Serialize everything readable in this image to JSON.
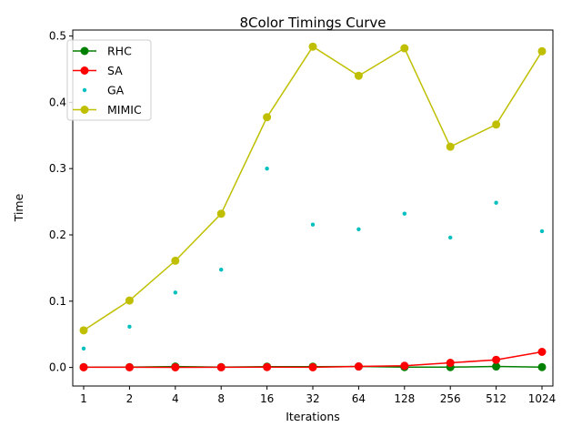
{
  "chart_data": {
    "type": "line",
    "title": "8Color Timings Curve",
    "xlabel": "Iterations",
    "ylabel": "Time",
    "categories": [
      "1",
      "2",
      "4",
      "8",
      "16",
      "32",
      "64",
      "128",
      "256",
      "512",
      "1024"
    ],
    "ylim": [
      -0.028,
      0.509
    ],
    "yticks": [
      "0.0",
      "0.1",
      "0.2",
      "0.3",
      "0.4",
      "0.5"
    ],
    "ytick_values": [
      0.0,
      0.1,
      0.2,
      0.3,
      0.4,
      0.5
    ],
    "grid": false,
    "legend_placement": "top-left",
    "series": [
      {
        "name": "RHC",
        "color": "#008000",
        "style": "line-marker",
        "values": [
          0.0005,
          0.0005,
          0.0013,
          0.0005,
          0.0012,
          0.0012,
          0.0015,
          0.0005,
          0.0005,
          0.0015,
          0.0005
        ]
      },
      {
        "name": "SA",
        "color": "#ff0000",
        "style": "line-marker",
        "values": [
          0.0003,
          0.0003,
          0.0002,
          0.0003,
          0.0005,
          0.0003,
          0.0015,
          0.0025,
          0.007,
          0.0115,
          0.0235
        ]
      },
      {
        "name": "GA",
        "color": "#00bfbf",
        "style": "point",
        "values": [
          0.0285,
          0.0615,
          0.113,
          0.1475,
          0.3,
          0.2155,
          0.2085,
          0.232,
          0.196,
          0.2485,
          0.2055
        ]
      },
      {
        "name": "MIMIC",
        "color": "#bfbf00",
        "style": "line-marker",
        "values": [
          0.056,
          0.101,
          0.161,
          0.232,
          0.3775,
          0.484,
          0.44,
          0.4815,
          0.333,
          0.3665,
          0.477
        ]
      }
    ]
  }
}
